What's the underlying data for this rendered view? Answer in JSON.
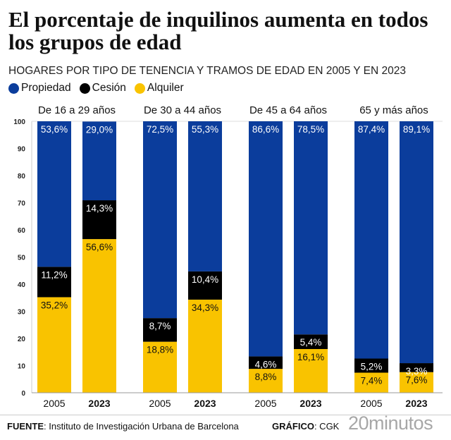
{
  "title": "El porcentaje de inquilinos aumenta en todos los grupos de edad",
  "subtitle": "HOGARES POR TIPO DE TENENCIA Y TRAMOS DE EDAD EN 2005 Y EN 2023",
  "footer": {
    "source_label": "FUENTE",
    "source_text": ": Instituto de Investigación Urbana de Barcelona",
    "credit_label": "GRÁFICO",
    "credit_text": ": CGK",
    "logo": "20minutos"
  },
  "chart_data": {
    "type": "bar",
    "stacked": true,
    "ylim": [
      0,
      100
    ],
    "yticks": [
      0,
      10,
      20,
      30,
      40,
      50,
      60,
      70,
      80,
      90,
      100
    ],
    "legend_position": "top-left",
    "grid": false,
    "groups": [
      "De 16 a 29 años",
      "De 30 a 44 años",
      "De 45 a 64 años",
      "65 y más años"
    ],
    "categories": [
      "2005",
      "2023"
    ],
    "series": [
      {
        "name": "Alquiler",
        "color": "#f9c300",
        "values": [
          [
            35.2,
            56.6
          ],
          [
            18.8,
            34.3
          ],
          [
            8.8,
            16.1
          ],
          [
            7.4,
            7.6
          ]
        ],
        "labels": [
          [
            "35,2%",
            "56,6%"
          ],
          [
            "18,8%",
            "34,3%"
          ],
          [
            "8,8%",
            "16,1%"
          ],
          [
            "7,4%",
            "7,6%"
          ]
        ]
      },
      {
        "name": "Cesión",
        "color": "#000000",
        "values": [
          [
            11.2,
            14.3
          ],
          [
            8.7,
            10.4
          ],
          [
            4.6,
            5.4
          ],
          [
            5.2,
            3.3
          ]
        ],
        "labels": [
          [
            "11,2%",
            "14,3%"
          ],
          [
            "8,7%",
            "10,4%"
          ],
          [
            "4,6%",
            "5,4%"
          ],
          [
            "5,2%",
            "3,3%"
          ]
        ]
      },
      {
        "name": "Propiedad",
        "color": "#0b3d9c",
        "values": [
          [
            53.6,
            29.0
          ],
          [
            72.5,
            55.3
          ],
          [
            86.6,
            78.5
          ],
          [
            87.4,
            89.1
          ]
        ],
        "labels": [
          [
            "53,6%",
            "29,0%"
          ],
          [
            "72,5%",
            "55,3%"
          ],
          [
            "86,6%",
            "78,5%"
          ],
          [
            "87,4%",
            "89,1%"
          ]
        ]
      }
    ],
    "legend": [
      "Propiedad",
      "Cesión",
      "Alquiler"
    ]
  }
}
